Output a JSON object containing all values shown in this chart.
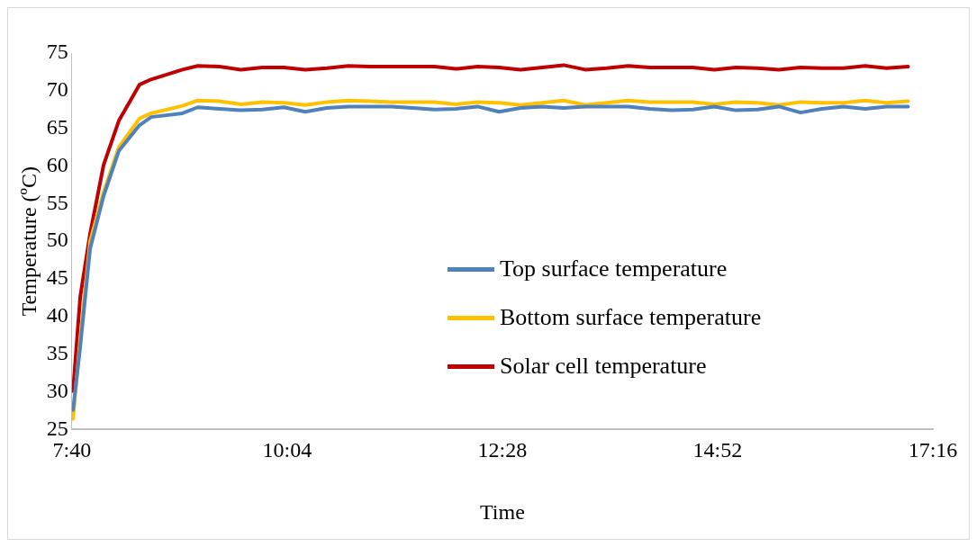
{
  "chart_data": {
    "type": "line",
    "xlabel": "Time",
    "ylabel": "Temperature (ºC)",
    "x": [
      7.68,
      7.76,
      7.87,
      8.02,
      8.19,
      8.42,
      8.55,
      8.9,
      9.07,
      9.31,
      9.55,
      9.79,
      10.03,
      10.27,
      10.51,
      10.75,
      10.99,
      11.23,
      11.47,
      11.71,
      11.95,
      12.19,
      12.43,
      12.67,
      12.91,
      13.15,
      13.39,
      13.63,
      13.87,
      14.11,
      14.35,
      14.59,
      14.83,
      15.07,
      15.31,
      15.55,
      15.79,
      16.03,
      16.27,
      16.51,
      16.75,
      16.99
    ],
    "series": [
      {
        "name": "Top surface temperature",
        "color": "#4f81bd",
        "values": [
          27.6,
          36,
          49,
          56,
          62,
          65.4,
          66.5,
          67,
          67.8,
          67.6,
          67.4,
          67.5,
          67.8,
          67.2,
          67.7,
          67.9,
          67.9,
          67.9,
          67.7,
          67.5,
          67.6,
          67.9,
          67.2,
          67.7,
          67.9,
          67.7,
          67.9,
          67.9,
          67.9,
          67.6,
          67.4,
          67.5,
          67.9,
          67.4,
          67.5,
          67.9,
          67.1,
          67.6,
          67.9,
          67.6,
          67.9,
          67.9
        ]
      },
      {
        "name": "Bottom surface temperature",
        "color": "#ffc000",
        "values": [
          26.4,
          37,
          50,
          56.5,
          62.5,
          66.3,
          67,
          68,
          68.7,
          68.6,
          68.2,
          68.5,
          68.4,
          68.1,
          68.5,
          68.7,
          68.6,
          68.5,
          68.5,
          68.5,
          68.2,
          68.5,
          68.4,
          68.1,
          68.4,
          68.7,
          68.1,
          68.4,
          68.7,
          68.5,
          68.5,
          68.5,
          68.2,
          68.5,
          68.4,
          68.1,
          68.5,
          68.4,
          68.4,
          68.7,
          68.4,
          68.6
        ]
      },
      {
        "name": "Solar cell temperature",
        "color": "#c00000",
        "values": [
          30.1,
          42.6,
          51,
          60.1,
          66,
          70.8,
          71.5,
          72.8,
          73.3,
          73.2,
          72.8,
          73.1,
          73.1,
          72.8,
          73,
          73.3,
          73.2,
          73.2,
          73.2,
          73.2,
          72.9,
          73.2,
          73.1,
          72.8,
          73.1,
          73.4,
          72.8,
          73,
          73.3,
          73.1,
          73.1,
          73.1,
          72.8,
          73.1,
          73,
          72.8,
          73.1,
          73,
          73,
          73.3,
          73,
          73.2
        ]
      }
    ],
    "xlim": [
      7.6667,
      17.2667
    ],
    "xticks": [
      {
        "value": 7.6667,
        "label": "7:40"
      },
      {
        "value": 10.0667,
        "label": "10:04"
      },
      {
        "value": 12.4667,
        "label": "12:28"
      },
      {
        "value": 14.8667,
        "label": "14:52"
      },
      {
        "value": 17.2667,
        "label": "17:16"
      }
    ],
    "ylim": [
      25,
      75
    ],
    "yticks": [
      25,
      30,
      35,
      40,
      45,
      50,
      55,
      60,
      65,
      70,
      75
    ],
    "grid": false,
    "legend": "bottom right",
    "marker": "none",
    "line_style": "solid"
  }
}
